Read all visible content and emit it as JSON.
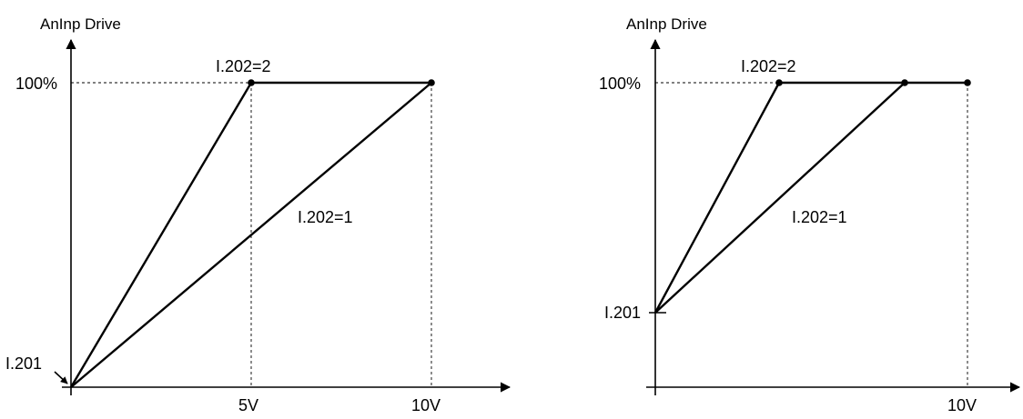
{
  "left_panel": {
    "y_axis_title": "AnInp Drive",
    "y_tick_label": "100%",
    "x_tick_labels": [
      "5V",
      "10V"
    ],
    "curve_labels": {
      "gain2": "I.202=2",
      "gain1": "I.202=1"
    },
    "offset_label": "I.201"
  },
  "right_panel": {
    "y_axis_title": "AnInp Drive",
    "y_tick_label": "100%",
    "x_tick_labels": [
      "10V"
    ],
    "curve_labels": {
      "gain2": "I.202=2",
      "gain1": "I.202=1"
    },
    "offset_label": "I.201"
  }
}
